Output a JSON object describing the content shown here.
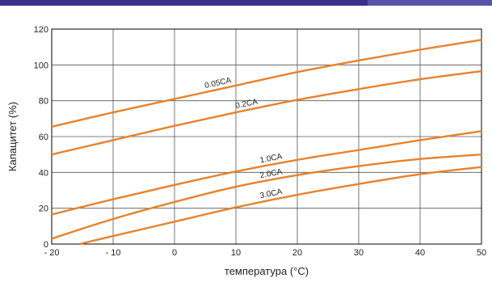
{
  "chart_data": {
    "type": "line",
    "title": "",
    "xlabel": "температура (°C)",
    "ylabel": "Капацитет (%)",
    "xlim": [
      -20,
      50
    ],
    "ylim": [
      0,
      120
    ],
    "x_ticks": [
      -20,
      -10,
      0,
      10,
      20,
      30,
      40,
      50
    ],
    "x_tick_labels": [
      "- 20",
      "- 10",
      "0",
      "10",
      "20",
      "30",
      "40",
      "50"
    ],
    "y_ticks": [
      0,
      20,
      40,
      60,
      80,
      100,
      120
    ],
    "y_tick_labels": [
      "0",
      "20",
      "40",
      "60",
      "80",
      "100",
      "120"
    ],
    "grid": true,
    "line_color": "#e8822a",
    "series": [
      {
        "name": "0.05CA",
        "x": [
          -20,
          -10,
          0,
          10,
          20,
          30,
          40,
          50
        ],
        "y": [
          65.5,
          73.5,
          81,
          88.5,
          96,
          102.5,
          108.5,
          114
        ],
        "label_at": 5
      },
      {
        "name": "0.2CA",
        "x": [
          -20,
          -10,
          0,
          10,
          20,
          30,
          40,
          50
        ],
        "y": [
          50,
          58,
          66,
          73.5,
          80.5,
          86.5,
          92,
          96.5
        ],
        "label_at": 10
      },
      {
        "name": "1.0CA",
        "x": [
          -20,
          -10,
          0,
          10,
          20,
          30,
          40,
          50
        ],
        "y": [
          16.5,
          25,
          33,
          40.5,
          47,
          52.5,
          58,
          63
        ],
        "label_at": 14
      },
      {
        "name": "2.0CA",
        "x": [
          -20,
          -10,
          0,
          10,
          20,
          30,
          40,
          50
        ],
        "y": [
          3,
          14,
          23.5,
          32,
          38.5,
          43.5,
          47.5,
          50
        ],
        "label_at": 14
      },
      {
        "name": "3.0CA",
        "x": [
          -15.5,
          -10,
          0,
          10,
          20,
          30,
          40,
          50
        ],
        "y": [
          0,
          4.5,
          12.5,
          20.5,
          27.5,
          33.5,
          39,
          43
        ],
        "label_at": 14
      }
    ]
  }
}
